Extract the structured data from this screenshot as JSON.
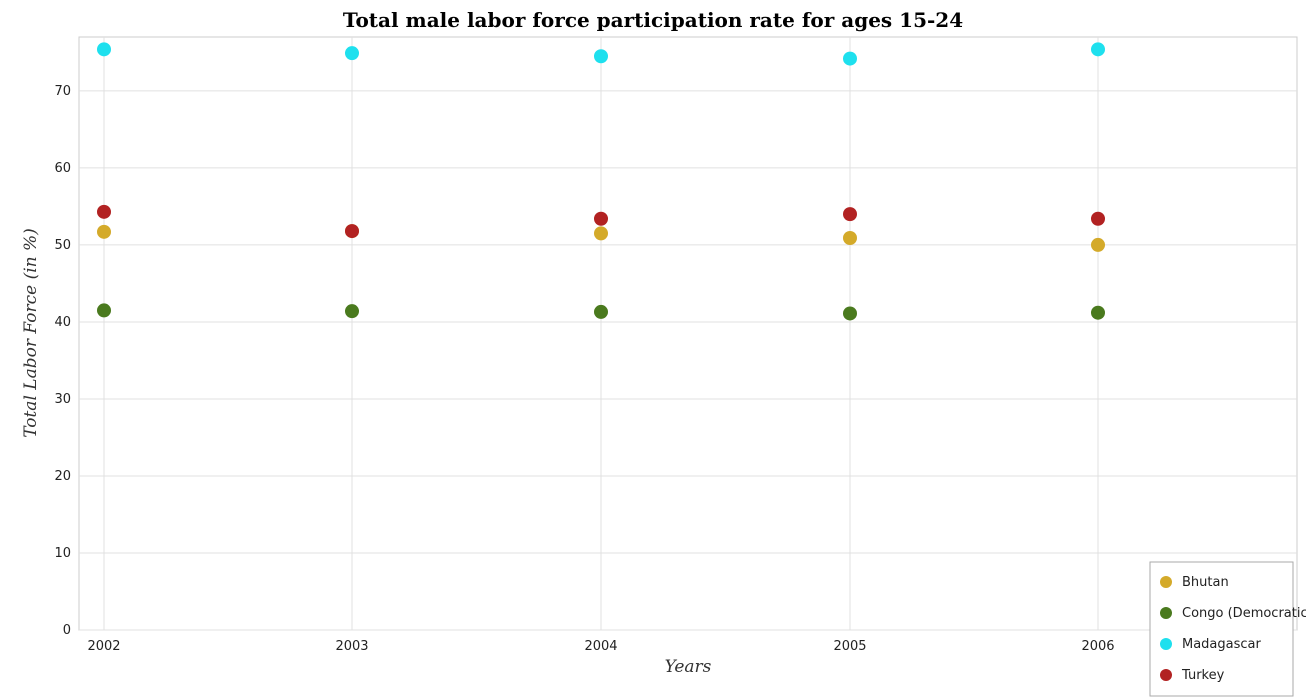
{
  "chart_data": {
    "type": "scatter",
    "title": "Total male labor force participation rate for ages 15-24",
    "xlabel": "Years",
    "ylabel": "Total Labor Force (in %)",
    "categories": [
      "2002",
      "2003",
      "2004",
      "2005",
      "2006"
    ],
    "ylim": [
      0,
      77
    ],
    "yticks": [
      0,
      10,
      20,
      30,
      40,
      50,
      60,
      70
    ],
    "grid": true,
    "legend_position": "bottom-right",
    "series": [
      {
        "name": "Bhutan",
        "color": "#d4aa2a",
        "values": [
          51.7,
          51.8,
          51.5,
          50.9,
          50.0
        ]
      },
      {
        "name": "Congo (Democratic)",
        "color": "#4a7a1e",
        "values": [
          41.5,
          41.4,
          41.3,
          41.1,
          41.2
        ]
      },
      {
        "name": "Madagascar",
        "color": "#1ee0ee",
        "values": [
          75.4,
          74.9,
          74.5,
          74.2,
          75.4
        ]
      },
      {
        "name": "Turkey",
        "color": "#b22222",
        "values": [
          54.3,
          51.8,
          53.4,
          54.0,
          53.4
        ]
      }
    ]
  }
}
